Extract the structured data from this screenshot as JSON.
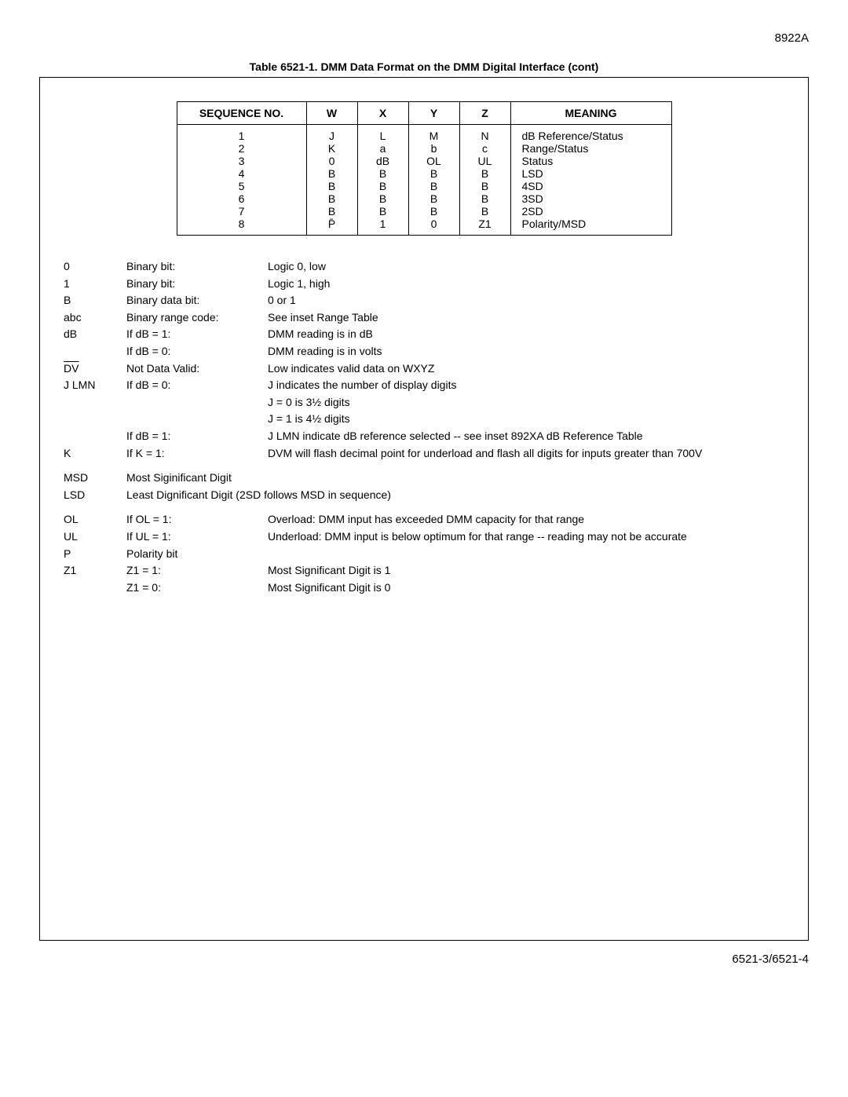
{
  "header": {
    "doc_id": "8922A"
  },
  "table_title": "Table 6521-1.  DMM Data Format on the DMM Digital Interface (cont)",
  "seq_table": {
    "headers": [
      "SEQUENCE NO.",
      "W",
      "X",
      "Y",
      "Z",
      "MEANING"
    ],
    "rows": [
      {
        "seq": "1",
        "w": "J",
        "x": "L",
        "y": "M",
        "z": "N",
        "meaning": "dB Reference/Status"
      },
      {
        "seq": "2",
        "w": "K",
        "x": "a",
        "y": "b",
        "z": "c",
        "meaning": "Range/Status"
      },
      {
        "seq": "3",
        "w": "0",
        "x": "dB",
        "y": "OL",
        "z": "UL",
        "meaning": "Status"
      },
      {
        "seq": "4",
        "w": "B",
        "x": "B",
        "y": "B",
        "z": "B",
        "meaning": "LSD"
      },
      {
        "seq": "5",
        "w": "B",
        "x": "B",
        "y": "B",
        "z": "B",
        "meaning": "4SD"
      },
      {
        "seq": "6",
        "w": "B",
        "x": "B",
        "y": "B",
        "z": "B",
        "meaning": "3SD"
      },
      {
        "seq": "7",
        "w": "B",
        "x": "B",
        "y": "B",
        "z": "B",
        "meaning": "2SD"
      },
      {
        "seq": "8",
        "w": "P̄",
        "x": "1",
        "y": "0",
        "z": "Z1",
        "meaning": "Polarity/MSD"
      }
    ]
  },
  "defs": [
    {
      "c1": "0",
      "c2": "Binary bit:",
      "c3": "Logic 0, low"
    },
    {
      "c1": "1",
      "c2": "Binary bit:",
      "c3": "Logic 1, high"
    },
    {
      "c1": "B",
      "c2": "Binary data bit:",
      "c3": "0 or 1"
    },
    {
      "c1": "abc",
      "c2": "Binary range code:",
      "c3": "See inset Range Table"
    },
    {
      "c1": "dB",
      "c2": "If dB = 1:",
      "c3": "DMM reading is in dB"
    },
    {
      "c1": "",
      "c2": "If dB = 0:",
      "c3": "DMM reading is in volts"
    },
    {
      "c1": "DV",
      "c1_overline": true,
      "c2": "Not Data Valid:",
      "c3": "Low indicates valid data on WXYZ"
    },
    {
      "c1": "J LMN",
      "c2": "If dB = 0:",
      "c3": "J indicates the number of display digits"
    },
    {
      "c1": "",
      "c2": "",
      "c3": "J = 0 is 3½ digits"
    },
    {
      "c1": "",
      "c2": "",
      "c3": "J = 1 is 4½ digits"
    },
    {
      "c1": "",
      "c2": "If dB = 1:",
      "c3": "J LMN indicate dB reference selected -- see inset 892XA dB Reference Table"
    },
    {
      "c1": "K",
      "c2": "If K = 1:",
      "c3": "DVM will flash decimal point for underload and flash all digits for inputs greater than 700V"
    },
    {
      "c1": "MSD",
      "c2": "Most Siginificant Digit",
      "c3": "",
      "spacer_top": true
    },
    {
      "c1": "LSD",
      "c2": "Least Dignificant Digit (2SD follows MSD in sequence)",
      "c3": "",
      "wide": true
    },
    {
      "c1": "OL",
      "c2": "If OL = 1:",
      "c3": "Overload: DMM input has exceeded DMM capacity for that range",
      "spacer_top": true
    },
    {
      "c1": "UL",
      "c2": "If UL = 1:",
      "c3": "Underload: DMM input is below optimum for that range -- reading may not be accurate"
    },
    {
      "c1": "P",
      "c2": "Polarity bit",
      "c3": ""
    },
    {
      "c1": "Z1",
      "c2": "Z1 = 1:",
      "c3": "Most Significant Digit is 1"
    },
    {
      "c1": "",
      "c2": "Z1 = 0:",
      "c3": "Most Significant Digit is 0"
    }
  ],
  "footer": {
    "page_ref": "6521-3/6521-4"
  }
}
